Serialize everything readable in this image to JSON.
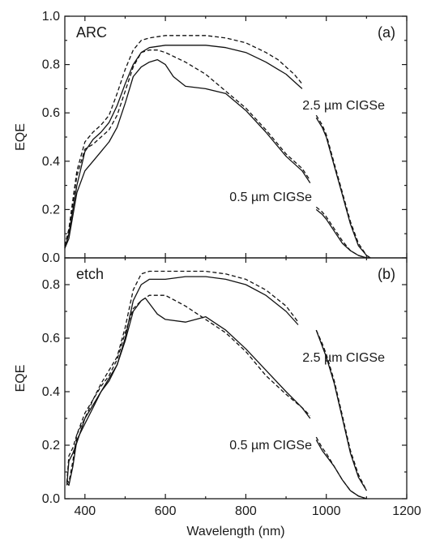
{
  "chart_data": [
    {
      "type": "line",
      "panel": "(a)",
      "label": "ARC",
      "xlabel": "",
      "ylabel": "EQE",
      "xlim": [
        350,
        1200
      ],
      "ylim": [
        0,
        1.0
      ],
      "xticks": [
        400,
        600,
        800,
        1000,
        1200
      ],
      "yticks": [
        "0.0",
        "0.2",
        "0.4",
        "0.6",
        "0.8",
        "1.0"
      ],
      "annotations": [
        "2.5 µm CIGSe",
        "0.5 µm CIGSe"
      ],
      "series": [
        {
          "style": "solid",
          "x": [
            350,
            360,
            380,
            400,
            420,
            440,
            460,
            480,
            500,
            520,
            540,
            560,
            600,
            650,
            700,
            750,
            800,
            850,
            880,
            900,
            920,
            940
          ],
          "y": [
            0.04,
            0.1,
            0.3,
            0.44,
            0.49,
            0.52,
            0.56,
            0.63,
            0.72,
            0.8,
            0.85,
            0.87,
            0.88,
            0.88,
            0.88,
            0.87,
            0.85,
            0.81,
            0.78,
            0.76,
            0.73,
            0.7
          ]
        },
        {
          "style": "solid",
          "x": [
            975,
            990,
            1000,
            1020,
            1040,
            1060,
            1080,
            1100,
            1110
          ],
          "y": [
            0.58,
            0.54,
            0.5,
            0.38,
            0.26,
            0.14,
            0.05,
            0.01,
            0.0
          ]
        },
        {
          "style": "dashed",
          "x": [
            350,
            360,
            380,
            400,
            420,
            440,
            460,
            480,
            500,
            520,
            540,
            560,
            600,
            650,
            700,
            750,
            800,
            850,
            880,
            900,
            920,
            940
          ],
          "y": [
            0.05,
            0.12,
            0.36,
            0.48,
            0.52,
            0.55,
            0.59,
            0.68,
            0.78,
            0.86,
            0.9,
            0.91,
            0.92,
            0.92,
            0.92,
            0.91,
            0.89,
            0.85,
            0.82,
            0.79,
            0.76,
            0.72
          ]
        },
        {
          "style": "dashed",
          "x": [
            975,
            990,
            1000,
            1020,
            1040,
            1060,
            1080,
            1100,
            1110
          ],
          "y": [
            0.59,
            0.55,
            0.51,
            0.39,
            0.27,
            0.15,
            0.06,
            0.01,
            0.0
          ]
        },
        {
          "style": "solid",
          "x": [
            350,
            360,
            380,
            400,
            420,
            440,
            460,
            480,
            500,
            520,
            540,
            560,
            580,
            600,
            620,
            650,
            700,
            750,
            800,
            850,
            900,
            940,
            960
          ],
          "y": [
            0.04,
            0.08,
            0.27,
            0.36,
            0.4,
            0.44,
            0.48,
            0.54,
            0.64,
            0.75,
            0.79,
            0.81,
            0.82,
            0.8,
            0.75,
            0.71,
            0.7,
            0.68,
            0.61,
            0.52,
            0.42,
            0.36,
            0.31
          ]
        },
        {
          "style": "solid",
          "x": [
            975,
            990,
            1000,
            1020,
            1040,
            1060,
            1080,
            1100,
            1110
          ],
          "y": [
            0.2,
            0.18,
            0.16,
            0.11,
            0.06,
            0.03,
            0.01,
            0.0,
            0.0
          ]
        },
        {
          "style": "dashed",
          "x": [
            350,
            360,
            380,
            400,
            420,
            440,
            460,
            480,
            500,
            520,
            540,
            560,
            580,
            600,
            650,
            700,
            750,
            800,
            850,
            900,
            940,
            960
          ],
          "y": [
            0.05,
            0.11,
            0.34,
            0.45,
            0.47,
            0.5,
            0.53,
            0.59,
            0.69,
            0.79,
            0.85,
            0.86,
            0.86,
            0.85,
            0.81,
            0.76,
            0.69,
            0.62,
            0.53,
            0.43,
            0.37,
            0.32
          ]
        },
        {
          "style": "dashed",
          "x": [
            975,
            990,
            1000,
            1020,
            1040,
            1060,
            1080,
            1100,
            1110
          ],
          "y": [
            0.21,
            0.19,
            0.17,
            0.12,
            0.07,
            0.03,
            0.01,
            0.0,
            0.0
          ]
        }
      ]
    },
    {
      "type": "line",
      "panel": "(b)",
      "label": "etch",
      "xlabel": "Wavelength (nm)",
      "ylabel": "EQE",
      "xlim": [
        350,
        1200
      ],
      "ylim": [
        0,
        0.9
      ],
      "xticks": [
        400,
        600,
        800,
        1000,
        1200
      ],
      "yticks": [
        "0.0",
        "0.2",
        "0.4",
        "0.6",
        "0.8"
      ],
      "annotations": [
        "2.5 µm CIGSe",
        "0.5 µm CIGSe"
      ],
      "series": [
        {
          "style": "solid",
          "x": [
            355,
            360,
            370,
            380,
            400,
            420,
            440,
            460,
            480,
            500,
            520,
            540,
            560,
            600,
            650,
            700,
            750,
            800,
            850,
            900,
            930
          ],
          "y": [
            0.06,
            0.05,
            0.12,
            0.22,
            0.28,
            0.34,
            0.4,
            0.45,
            0.5,
            0.6,
            0.74,
            0.8,
            0.82,
            0.82,
            0.83,
            0.83,
            0.82,
            0.8,
            0.76,
            0.7,
            0.65
          ]
        },
        {
          "style": "solid",
          "x": [
            975,
            990,
            1000,
            1020,
            1040,
            1060,
            1080,
            1100
          ],
          "y": [
            0.63,
            0.57,
            0.53,
            0.43,
            0.3,
            0.17,
            0.08,
            0.03
          ]
        },
        {
          "style": "dashed",
          "x": [
            355,
            360,
            370,
            380,
            400,
            420,
            440,
            460,
            480,
            500,
            520,
            540,
            560,
            600,
            650,
            700,
            750,
            800,
            850,
            900,
            930
          ],
          "y": [
            0.07,
            0.06,
            0.14,
            0.24,
            0.3,
            0.37,
            0.43,
            0.48,
            0.53,
            0.64,
            0.78,
            0.84,
            0.85,
            0.85,
            0.85,
            0.85,
            0.84,
            0.82,
            0.78,
            0.72,
            0.66
          ]
        },
        {
          "style": "dashed",
          "x": [
            975,
            990,
            1000,
            1020,
            1040,
            1060,
            1080,
            1100
          ],
          "y": [
            0.63,
            0.58,
            0.54,
            0.44,
            0.31,
            0.18,
            0.09,
            0.03
          ]
        },
        {
          "style": "solid",
          "x": [
            355,
            360,
            370,
            380,
            400,
            420,
            440,
            460,
            480,
            500,
            520,
            540,
            550,
            560,
            580,
            600,
            650,
            700,
            750,
            800,
            850,
            900,
            940,
            960
          ],
          "y": [
            0.05,
            0.14,
            0.17,
            0.21,
            0.3,
            0.35,
            0.4,
            0.44,
            0.5,
            0.59,
            0.7,
            0.74,
            0.75,
            0.73,
            0.69,
            0.67,
            0.66,
            0.68,
            0.63,
            0.56,
            0.48,
            0.4,
            0.34,
            0.3
          ]
        },
        {
          "style": "solid",
          "x": [
            975,
            990,
            1000,
            1020,
            1040,
            1060,
            1080,
            1100
          ],
          "y": [
            0.22,
            0.18,
            0.16,
            0.12,
            0.07,
            0.03,
            0.01,
            0.0
          ]
        },
        {
          "style": "dashed",
          "x": [
            355,
            360,
            370,
            380,
            400,
            420,
            440,
            460,
            480,
            500,
            520,
            540,
            560,
            600,
            650,
            700,
            750,
            800,
            850,
            900,
            940,
            960
          ],
          "y": [
            0.06,
            0.16,
            0.19,
            0.24,
            0.32,
            0.37,
            0.42,
            0.46,
            0.52,
            0.62,
            0.71,
            0.74,
            0.76,
            0.76,
            0.72,
            0.67,
            0.62,
            0.55,
            0.46,
            0.39,
            0.34,
            0.31
          ]
        },
        {
          "style": "dashed",
          "x": [
            975,
            990,
            1000,
            1020,
            1040,
            1060,
            1080,
            1100
          ],
          "y": [
            0.23,
            0.19,
            0.17,
            0.12,
            0.07,
            0.03,
            0.01,
            0.0
          ]
        }
      ]
    }
  ]
}
